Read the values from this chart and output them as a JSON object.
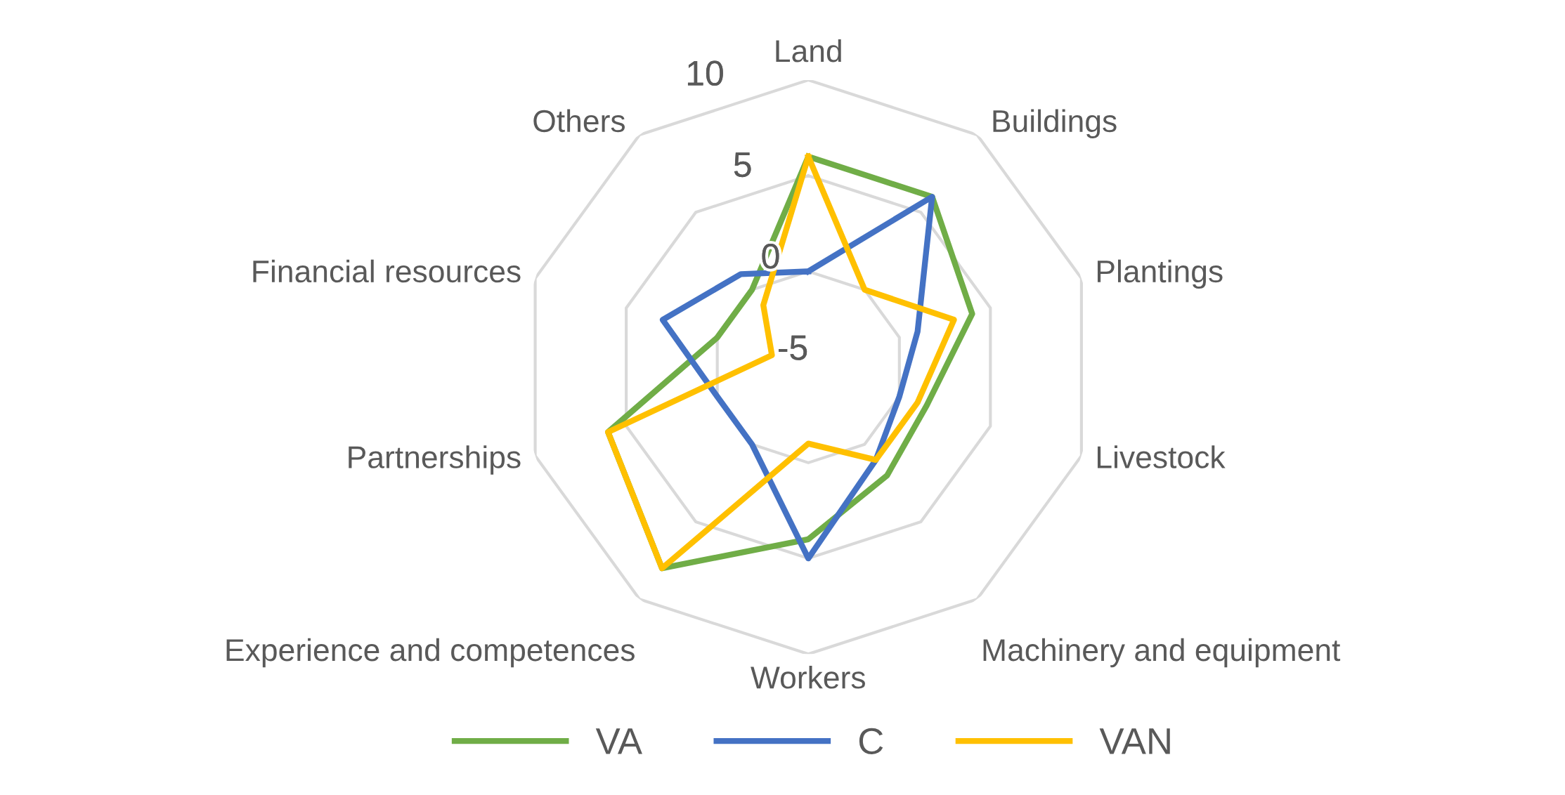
{
  "chart_data": {
    "type": "radar",
    "categories": [
      "Land",
      "Buildings",
      "Plantings",
      "Livestock",
      "Machinery and equipment",
      "Workers",
      "Experience and competences",
      "Partnerships",
      "Financial resources",
      "Others"
    ],
    "series": [
      {
        "name": "VA",
        "color": "#70ad47",
        "values": [
          6,
          6,
          4,
          1.5,
          2,
          4,
          8,
          6,
          0,
          0
        ]
      },
      {
        "name": "C",
        "color": "#4472c4",
        "values": [
          0,
          6,
          1,
          0,
          1,
          5,
          0,
          0,
          3,
          1
        ]
      },
      {
        "name": "VAN",
        "color": "#ffc000",
        "values": [
          6,
          0,
          3,
          1,
          1,
          -1,
          8,
          6,
          -3,
          -1
        ]
      }
    ],
    "ylim": [
      -5,
      10
    ],
    "yticks": [
      -5,
      0,
      5,
      10
    ],
    "grid": true,
    "legend": "bottom",
    "marker": "none",
    "line_style": "solid"
  }
}
